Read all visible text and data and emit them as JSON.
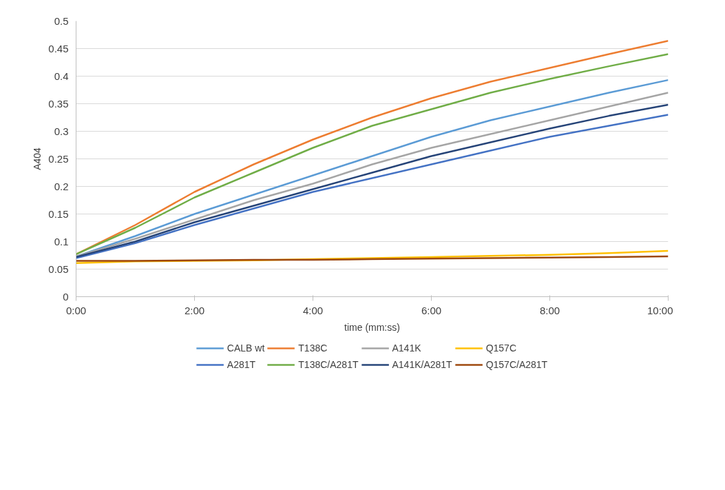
{
  "chart_data": {
    "type": "line",
    "xlabel": "time (mm:ss)",
    "ylabel": "A404",
    "x": [
      0,
      1,
      2,
      3,
      4,
      5,
      6,
      7,
      8,
      9,
      10
    ],
    "xlim": [
      0,
      10
    ],
    "xticks": [
      {
        "value": 0,
        "label": "0:00"
      },
      {
        "value": 2,
        "label": "2:00"
      },
      {
        "value": 4,
        "label": "4:00"
      },
      {
        "value": 6,
        "label": "6:00"
      },
      {
        "value": 8,
        "label": "8:00"
      },
      {
        "value": 10,
        "label": "10:00"
      }
    ],
    "ylim": [
      0,
      0.5
    ],
    "yticks": [
      0,
      0.05,
      0.1,
      0.15,
      0.2,
      0.25,
      0.3,
      0.35,
      0.4,
      0.45,
      0.5
    ],
    "grid": "y",
    "legend": "bottom",
    "marker": "none",
    "line_style": "solid",
    "series": [
      {
        "name": "CALB wt",
        "color": "#5b9bd5",
        "values": [
          0.073,
          0.11,
          0.15,
          0.185,
          0.22,
          0.255,
          0.29,
          0.32,
          0.345,
          0.37,
          0.393
        ]
      },
      {
        "name": "T138C",
        "color": "#ed7d31",
        "values": [
          0.077,
          0.13,
          0.19,
          0.24,
          0.285,
          0.325,
          0.36,
          0.39,
          0.415,
          0.44,
          0.464
        ]
      },
      {
        "name": "A141K",
        "color": "#a5a5a5",
        "values": [
          0.073,
          0.105,
          0.14,
          0.175,
          0.205,
          0.24,
          0.27,
          0.295,
          0.32,
          0.345,
          0.37
        ]
      },
      {
        "name": "Q157C",
        "color": "#ffc000",
        "values": [
          0.061,
          0.064,
          0.065,
          0.066,
          0.068,
          0.07,
          0.072,
          0.074,
          0.076,
          0.079,
          0.083
        ]
      },
      {
        "name": "A281T",
        "color": "#4472c4",
        "values": [
          0.07,
          0.097,
          0.13,
          0.16,
          0.19,
          0.215,
          0.24,
          0.265,
          0.29,
          0.31,
          0.33
        ]
      },
      {
        "name": "T138C/A281T",
        "color": "#70ad47",
        "values": [
          0.077,
          0.125,
          0.18,
          0.225,
          0.27,
          0.31,
          0.34,
          0.37,
          0.395,
          0.418,
          0.44
        ]
      },
      {
        "name": "A141K/A281T",
        "color": "#264478",
        "values": [
          0.072,
          0.1,
          0.135,
          0.165,
          0.195,
          0.225,
          0.255,
          0.28,
          0.305,
          0.328,
          0.348
        ]
      },
      {
        "name": "Q157C/A281T",
        "color": "#9e480e",
        "values": [
          0.065,
          0.065,
          0.066,
          0.067,
          0.067,
          0.068,
          0.069,
          0.07,
          0.071,
          0.072,
          0.073
        ]
      }
    ]
  }
}
